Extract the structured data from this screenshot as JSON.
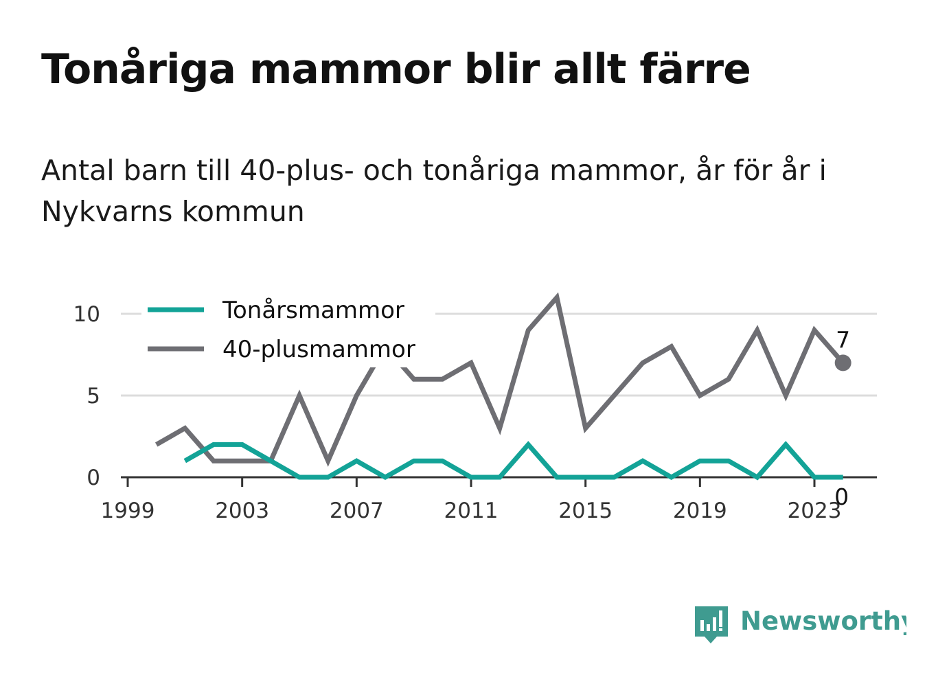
{
  "title": "Tonåriga mammor blir allt färre",
  "subtitle": "Antal barn till 40-plus- och tonåriga mammor, år för år i Nykvarns kommun",
  "brand": {
    "name": "Newsworthy",
    "icon": "newsworthy-logo-icon",
    "color": "#3f9b90"
  },
  "chart_data": {
    "type": "line",
    "x": [
      2000,
      2001,
      2002,
      2003,
      2004,
      2005,
      2006,
      2007,
      2008,
      2009,
      2010,
      2011,
      2012,
      2013,
      2014,
      2015,
      2016,
      2017,
      2018,
      2019,
      2020,
      2021,
      2022,
      2023,
      2024
    ],
    "series": [
      {
        "name": "Tonårsmammor",
        "color": "#13a397",
        "values": [
          null,
          1,
          2,
          2,
          1,
          0,
          0,
          1,
          0,
          1,
          1,
          0,
          0,
          2,
          0,
          0,
          0,
          1,
          0,
          1,
          1,
          0,
          2,
          0,
          0
        ],
        "end_label": "0"
      },
      {
        "name": "40-plusmammor",
        "color": "#6e6e73",
        "values": [
          2,
          3,
          1,
          1,
          1,
          5,
          1,
          5,
          8,
          6,
          6,
          7,
          3,
          9,
          11,
          3,
          5,
          7,
          8,
          5,
          6,
          9,
          5,
          9,
          7
        ],
        "end_label": "7"
      }
    ],
    "xlim": [
      1999,
      2025
    ],
    "ylim": [
      0,
      11
    ],
    "x_ticks": [
      "1999",
      "2003",
      "2007",
      "2011",
      "2015",
      "2019",
      "2023"
    ],
    "y_ticks": [
      "0",
      "5",
      "10"
    ],
    "grid": "horizontal",
    "legend": "top-left",
    "xlabel": "",
    "ylabel": ""
  }
}
